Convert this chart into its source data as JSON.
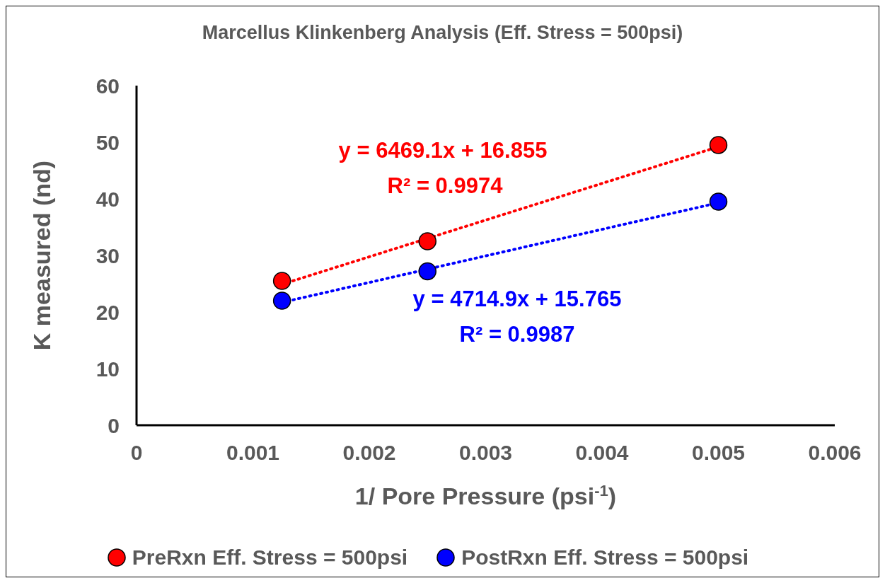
{
  "chart_data": {
    "type": "scatter",
    "title": "Marcellus Klinkenberg Analysis (Eff. Stress = 500psi)",
    "xlabel": "1/ Pore Pressure (psi$^{-1}$)",
    "ylabel": "K measured (nd)",
    "series": [
      {
        "name": "PreRxn Eff. Stress = 500psi",
        "marker": "circle",
        "color": "#ff0000",
        "x": [
          0.00125,
          0.0025,
          0.005
        ],
        "values": [
          25.5,
          32.5,
          49.5
        ]
      },
      {
        "name": "PostRxn Eff. Stress = 500psi",
        "marker": "circle",
        "color": "#0000ff",
        "x": [
          0.00125,
          0.0025,
          0.005
        ],
        "values": [
          22,
          27.2,
          39.5
        ]
      },
      {
        "type": "line",
        "color": "#ff0000",
        "line_style": "dotted",
        "x": [
          0.00125,
          0.005
        ],
        "values": [
          24.9,
          49.2
        ]
      },
      {
        "type": "line",
        "color": "#0000ff",
        "line_style": "dotted",
        "x": [
          0.00125,
          0.005
        ],
        "values": [
          21.7,
          39.3
        ]
      }
    ],
    "annotations": [
      "y = 6469.1x + 16.855",
      "R² = 0.9974",
      "y = 4714.9x + 15.765",
      "R² = 0.9987"
    ],
    "xlim": [
      0,
      0.006
    ],
    "xticks": [
      0,
      0.001,
      0.002,
      0.003,
      0.004,
      0.005,
      0.006
    ],
    "ylim": [
      0,
      60
    ],
    "yticks": [
      0,
      10,
      20,
      30,
      40,
      50,
      60
    ],
    "grid": false,
    "legend": "bottom"
  }
}
